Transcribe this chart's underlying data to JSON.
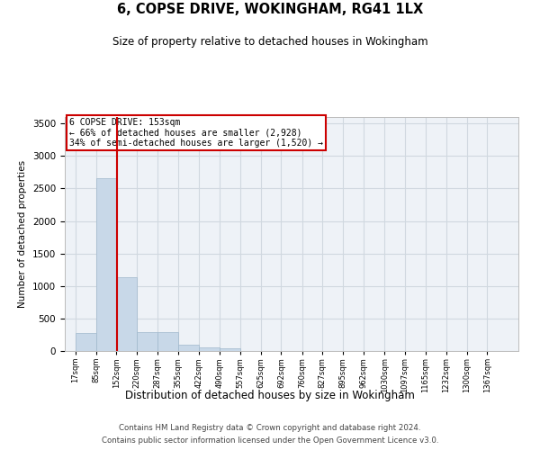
{
  "title": "6, COPSE DRIVE, WOKINGHAM, RG41 1LX",
  "subtitle": "Size of property relative to detached houses in Wokingham",
  "xlabel": "Distribution of detached houses by size in Wokingham",
  "ylabel": "Number of detached properties",
  "bar_color": "#c8d8e8",
  "bar_edge_color": "#a0b8cc",
  "grid_color": "#d0d8e0",
  "background_color": "#eef2f7",
  "annotation_box_text": "6 COPSE DRIVE: 153sqm\n← 66% of detached houses are smaller (2,928)\n34% of semi-detached houses are larger (1,520) →",
  "annotation_box_color": "#cc0000",
  "vline_x": 153,
  "vline_color": "#cc0000",
  "bin_edges": [
    17,
    85,
    152,
    220,
    287,
    355,
    422,
    490,
    557,
    625,
    692,
    760,
    827,
    895,
    962,
    1030,
    1097,
    1165,
    1232,
    1300,
    1367
  ],
  "bin_labels": [
    "17sqm",
    "85sqm",
    "152sqm",
    "220sqm",
    "287sqm",
    "355sqm",
    "422sqm",
    "490sqm",
    "557sqm",
    "625sqm",
    "692sqm",
    "760sqm",
    "827sqm",
    "895sqm",
    "962sqm",
    "1030sqm",
    "1097sqm",
    "1165sqm",
    "1232sqm",
    "1300sqm",
    "1367sqm"
  ],
  "bar_heights": [
    280,
    2660,
    1140,
    290,
    290,
    95,
    55,
    35,
    0,
    0,
    0,
    0,
    0,
    0,
    0,
    0,
    0,
    0,
    0,
    0
  ],
  "ylim": [
    0,
    3600
  ],
  "yticks": [
    0,
    500,
    1000,
    1500,
    2000,
    2500,
    3000,
    3500
  ],
  "footer_line1": "Contains HM Land Registry data © Crown copyright and database right 2024.",
  "footer_line2": "Contains public sector information licensed under the Open Government Licence v3.0."
}
